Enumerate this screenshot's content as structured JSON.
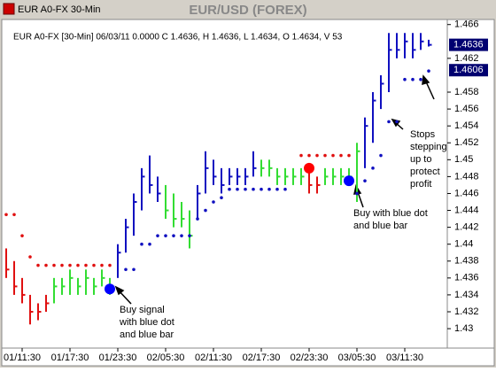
{
  "window_title": "EUR A0-FX 30-Min",
  "chart_data": {
    "type": "ohlc",
    "title": "EUR/USD (FOREX)",
    "info_line": "EUR A0-FX [30-Min] 06/03/11  0.0000 C 1.4636, H 1.4636, L 1.4634, O 1.4634, V 53",
    "categories": [
      null,
      null,
      "01/11:30",
      null,
      null,
      null,
      null,
      null,
      "01/17:30",
      null,
      null,
      null,
      null,
      null,
      "01/23:30",
      null,
      null,
      null,
      null,
      null,
      "02/05:30",
      null,
      null,
      null,
      null,
      null,
      "02/11:30",
      null,
      null,
      null,
      null,
      null,
      "02/17:30",
      null,
      null,
      null,
      null,
      null,
      "02/23:30",
      null,
      null,
      null,
      null,
      null,
      "03/05:30",
      null,
      null,
      null,
      null,
      null,
      "03/11:30",
      null,
      null,
      null
    ],
    "high": [
      1.4395,
      1.438,
      1.436,
      1.434,
      1.433,
      1.434,
      1.436,
      1.436,
      1.437,
      1.436,
      1.437,
      1.436,
      1.437,
      1.436,
      1.44,
      1.443,
      1.446,
      1.449,
      1.4505,
      1.448,
      1.447,
      1.446,
      1.445,
      1.444,
      1.447,
      1.451,
      1.45,
      1.449,
      1.449,
      1.449,
      1.449,
      1.451,
      1.45,
      1.45,
      1.449,
      1.449,
      1.449,
      1.449,
      1.449,
      1.448,
      1.449,
      1.449,
      1.449,
      1.449,
      1.452,
      1.455,
      1.458,
      1.46,
      1.465,
      1.465,
      1.465,
      1.465,
      1.465,
      1.4642
    ],
    "low": [
      1.436,
      1.434,
      1.433,
      1.4305,
      1.431,
      1.432,
      1.433,
      1.434,
      1.434,
      1.434,
      1.434,
      1.434,
      1.435,
      1.434,
      1.436,
      1.439,
      1.441,
      1.444,
      1.446,
      1.445,
      1.443,
      1.442,
      1.442,
      1.4395,
      1.443,
      1.446,
      1.447,
      1.446,
      1.447,
      1.447,
      1.447,
      1.448,
      1.448,
      1.448,
      1.447,
      1.447,
      1.447,
      1.447,
      1.446,
      1.446,
      1.447,
      1.447,
      1.447,
      1.447,
      1.445,
      1.449,
      1.452,
      1.456,
      1.458,
      1.462,
      1.462,
      1.462,
      1.463,
      1.4634
    ],
    "close": [
      1.437,
      1.435,
      1.434,
      1.432,
      1.432,
      1.433,
      1.435,
      1.435,
      1.436,
      1.435,
      1.436,
      1.435,
      1.436,
      1.435,
      1.439,
      1.442,
      1.445,
      1.448,
      1.447,
      1.446,
      1.444,
      1.443,
      1.443,
      1.441,
      1.446,
      1.449,
      1.448,
      1.447,
      1.448,
      1.448,
      1.448,
      1.449,
      1.449,
      1.449,
      1.448,
      1.448,
      1.448,
      1.448,
      1.447,
      1.447,
      1.448,
      1.448,
      1.448,
      1.448,
      1.451,
      1.454,
      1.457,
      1.459,
      1.463,
      1.463,
      1.464,
      1.463,
      1.464,
      1.4636
    ],
    "bar_colors": [
      "#e01010",
      "#e01010",
      "#e01010",
      "#e01010",
      "#e01010",
      "#e01010",
      "#33dd33",
      "#33dd33",
      "#33dd33",
      "#33dd33",
      "#33dd33",
      "#33dd33",
      "#33dd33",
      "#33dd33",
      "#1010c0",
      "#1010c0",
      "#1010c0",
      "#1010c0",
      "#1010c0",
      "#1010c0",
      "#33dd33",
      "#33dd33",
      "#33dd33",
      "#33dd33",
      "#1010c0",
      "#1010c0",
      "#1010c0",
      "#1010c0",
      "#1010c0",
      "#1010c0",
      "#1010c0",
      "#1010c0",
      "#33dd33",
      "#33dd33",
      "#33dd33",
      "#33dd33",
      "#33dd33",
      "#33dd33",
      "#e01010",
      "#e01010",
      "#33dd33",
      "#33dd33",
      "#33dd33",
      "#33dd33",
      "#33dd33",
      "#1010c0",
      "#1010c0",
      "#1010c0",
      "#1010c0",
      "#1010c0",
      "#1010c0",
      "#1010c0",
      "#1010c0",
      "#1010c0"
    ],
    "series": [
      {
        "color": "#e01010",
        "marker": "small",
        "values": [
          1.4435,
          1.4435,
          1.441,
          1.4385,
          1.4375,
          1.4375,
          1.4375,
          1.4375,
          1.4375,
          1.4375,
          1.4375,
          1.4375,
          1.4375,
          1.4375,
          null,
          null,
          null,
          null,
          null,
          null,
          null,
          null,
          null,
          null,
          null,
          null,
          null,
          null,
          null,
          null,
          null,
          null,
          null,
          null,
          null,
          null,
          null,
          1.4505,
          1.4505,
          1.4505,
          1.4505,
          1.4505,
          1.4505,
          1.4505,
          null,
          null,
          null,
          null,
          null,
          null,
          null,
          null,
          null,
          null
        ]
      },
      {
        "color": "#1010c0",
        "marker": "small",
        "values": [
          null,
          null,
          null,
          null,
          null,
          null,
          null,
          null,
          null,
          null,
          null,
          null,
          null,
          null,
          null,
          1.437,
          1.437,
          1.44,
          1.44,
          1.441,
          1.441,
          1.441,
          1.441,
          1.441,
          1.443,
          1.444,
          1.445,
          1.4455,
          1.4465,
          1.4465,
          1.4465,
          1.4465,
          1.4465,
          1.4465,
          1.4465,
          1.4465,
          null,
          null,
          null,
          null,
          null,
          null,
          null,
          null,
          1.446,
          1.4475,
          1.449,
          1.4505,
          1.4545,
          1.4545,
          1.4595,
          1.4595,
          1.4595,
          1.4605
        ]
      },
      {
        "color": "#0000ff",
        "marker": "large",
        "values": [
          null,
          null,
          null,
          null,
          null,
          null,
          null,
          null,
          null,
          null,
          null,
          null,
          null,
          1.4347,
          null,
          null,
          null,
          null,
          null,
          null,
          null,
          null,
          null,
          null,
          null,
          null,
          null,
          null,
          null,
          null,
          null,
          null,
          null,
          null,
          null,
          null,
          null,
          null,
          null,
          null,
          null,
          null,
          null,
          1.4475,
          null,
          null,
          null,
          null,
          null,
          null,
          null,
          null,
          null,
          null
        ]
      },
      {
        "color": "#ff0000",
        "marker": "large",
        "values": [
          null,
          null,
          null,
          null,
          null,
          null,
          null,
          null,
          null,
          null,
          null,
          null,
          null,
          null,
          null,
          null,
          null,
          null,
          null,
          null,
          null,
          null,
          null,
          null,
          null,
          null,
          null,
          null,
          null,
          null,
          null,
          null,
          null,
          null,
          null,
          null,
          null,
          null,
          1.449,
          null,
          null,
          null,
          null,
          null,
          null,
          null,
          null,
          null,
          null,
          null,
          null,
          null,
          null,
          null
        ]
      }
    ],
    "ylim": [
      1.4277,
      1.4666
    ],
    "yticks": [
      1.43,
      1.432,
      1.434,
      1.436,
      1.438,
      1.44,
      1.442,
      1.444,
      1.446,
      1.448,
      1.45,
      1.452,
      1.454,
      1.456,
      1.458,
      1.462,
      1.466
    ],
    "price_markers": [
      1.4636,
      1.4606
    ],
    "grid": false,
    "annotations": [
      {
        "lines": [
          "Buy signal",
          "with blue dot",
          "and blue bar"
        ]
      },
      {
        "lines": [
          "Buy with blue dot",
          "and blue bar"
        ]
      },
      {
        "lines": [
          "Stops",
          "stepping",
          "up to",
          "protect",
          "profit"
        ]
      }
    ]
  }
}
